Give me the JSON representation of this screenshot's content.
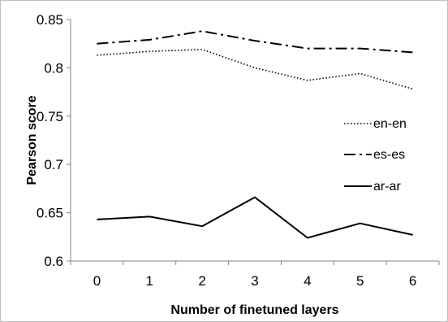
{
  "chart_data": {
    "type": "line",
    "title": "",
    "xlabel": "Number of finetuned layers",
    "ylabel": "Pearson score",
    "x": [
      0,
      1,
      2,
      3,
      4,
      5,
      6
    ],
    "x_tick_labels": [
      "0",
      "1",
      "2",
      "3",
      "4",
      "5",
      "6"
    ],
    "ylim": [
      0.6,
      0.85
    ],
    "y_ticks": [
      0.6,
      0.65,
      0.7,
      0.75,
      0.8,
      0.85
    ],
    "y_tick_labels": [
      "0.6",
      "0.65",
      "0.7",
      "0.75",
      "0.8",
      "0.85"
    ],
    "grid": false,
    "legend_position": "right",
    "series": [
      {
        "name": "en-en",
        "style": "dotted",
        "color": "#000000",
        "values": [
          0.813,
          0.817,
          0.819,
          0.8,
          0.787,
          0.794,
          0.778
        ]
      },
      {
        "name": "es-es",
        "style": "dash-dot",
        "color": "#000000",
        "values": [
          0.825,
          0.829,
          0.838,
          0.828,
          0.82,
          0.82,
          0.816
        ]
      },
      {
        "name": "ar-ar",
        "style": "solid",
        "color": "#000000",
        "values": [
          0.643,
          0.646,
          0.636,
          0.666,
          0.624,
          0.639,
          0.627
        ]
      }
    ]
  }
}
